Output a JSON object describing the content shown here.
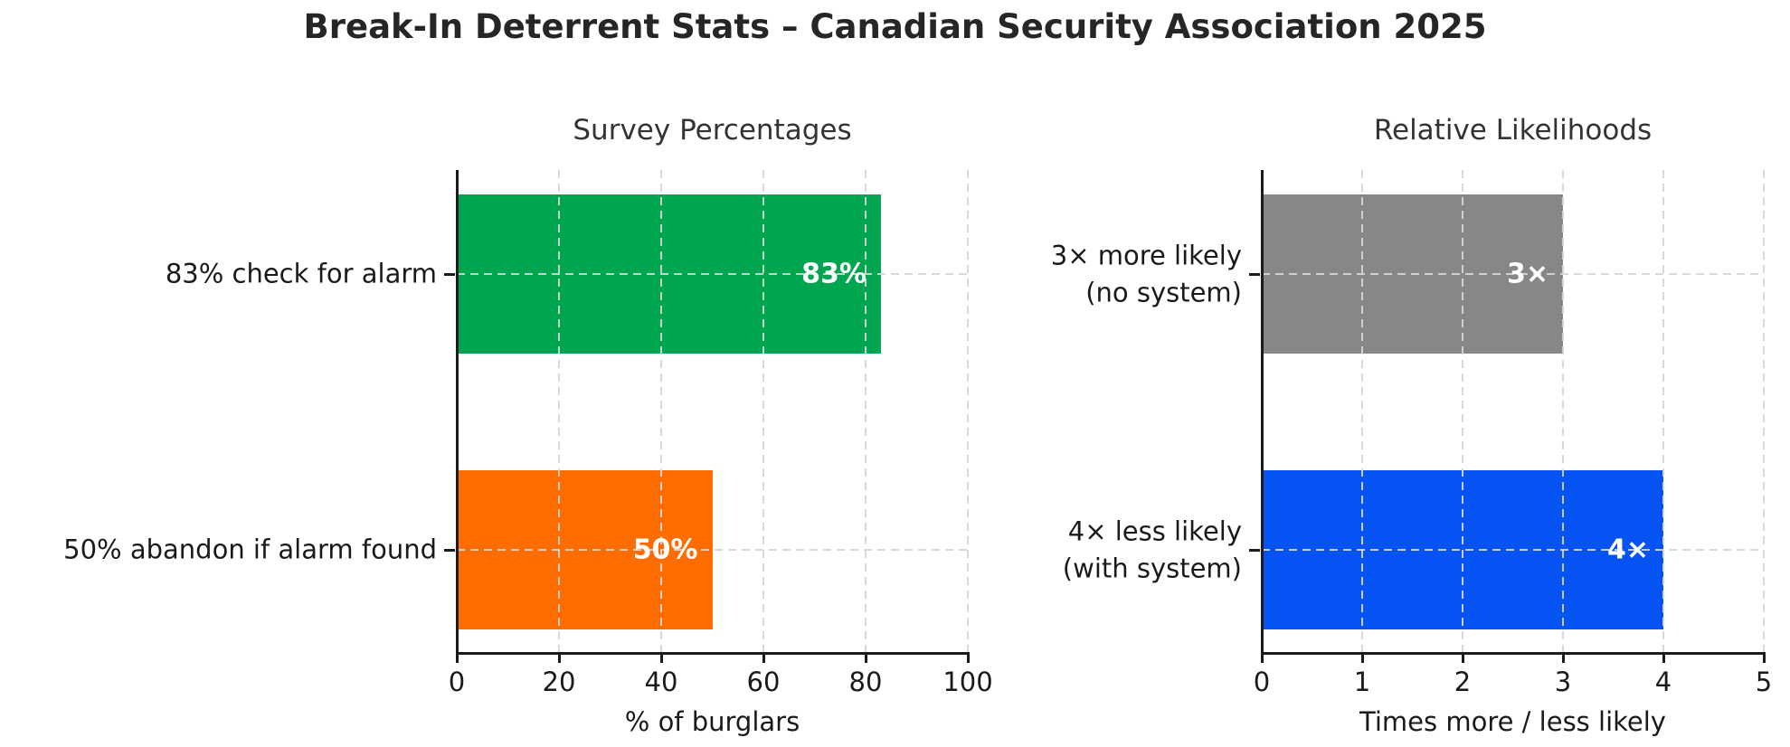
{
  "figure": {
    "title": "Break-In Deterrent Stats – Canadian Security Association 2025",
    "background": "#ffffff",
    "text_color": "#1a1a1a"
  },
  "chart_data": [
    {
      "type": "bar",
      "orientation": "horizontal",
      "title": "Survey Percentages",
      "xlabel": "% of burglars",
      "xlim": [
        0,
        100
      ],
      "xticks": [
        "0",
        "20",
        "40",
        "60",
        "80",
        "100"
      ],
      "grid": "dashed, both axes, drawn over bars",
      "legend": "none",
      "bars": [
        {
          "category": "83% check for alarm",
          "value": 83,
          "label": "83%",
          "color": "#00a550"
        },
        {
          "category": "50% abandon if alarm found",
          "value": 50,
          "label": "50%",
          "color": "#ff6d00"
        }
      ]
    },
    {
      "type": "bar",
      "orientation": "horizontal",
      "title": "Relative Likelihoods",
      "xlabel": "Times more / less likely",
      "xlim": [
        0,
        5
      ],
      "xticks": [
        "0",
        "1",
        "2",
        "3",
        "4",
        "5"
      ],
      "grid": "dashed, both axes, drawn over bars",
      "legend": "none",
      "bars": [
        {
          "category": "3× more likely\n(no system)",
          "value": 3,
          "label": "3×",
          "color": "#878787"
        },
        {
          "category": "4× less likely\n(with system)",
          "value": 4,
          "label": "4×",
          "color": "#0453f2"
        }
      ]
    }
  ]
}
